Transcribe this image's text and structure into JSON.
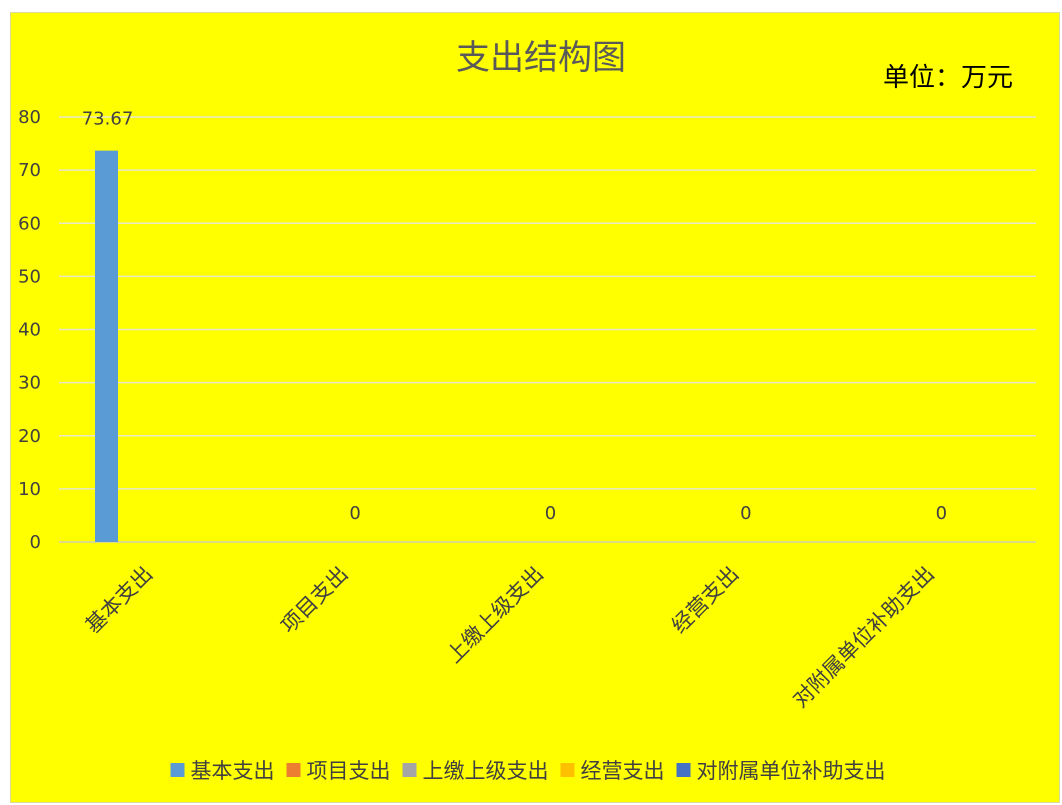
{
  "chart_data": {
    "type": "bar",
    "title": "支出结构图",
    "unit_note": "单位：万元",
    "categories": [
      "基本支出",
      "项目支出",
      "上缴上级支出",
      "经营支出",
      "对附属单位补助支出"
    ],
    "series": [
      {
        "name": "基本支出",
        "color": "#5b9bd5"
      },
      {
        "name": "项目支出",
        "color": "#ed7d31"
      },
      {
        "name": "上缴上级支出",
        "color": "#a5a5a5"
      },
      {
        "name": "经营支出",
        "color": "#ffc000"
      },
      {
        "name": "对附属单位补助支出",
        "color": "#4472c4"
      }
    ],
    "values": [
      73.67,
      0,
      0,
      0,
      0
    ],
    "data_labels": [
      "73.67",
      "0",
      "0",
      "0",
      "0"
    ],
    "ylim": [
      0,
      80
    ],
    "yticks": [
      0,
      10,
      20,
      30,
      40,
      50,
      60,
      70,
      80
    ],
    "grid": true,
    "legend_position": "bottom",
    "background_color": "#ffff00",
    "gridline_color": "#e8e8c8"
  }
}
